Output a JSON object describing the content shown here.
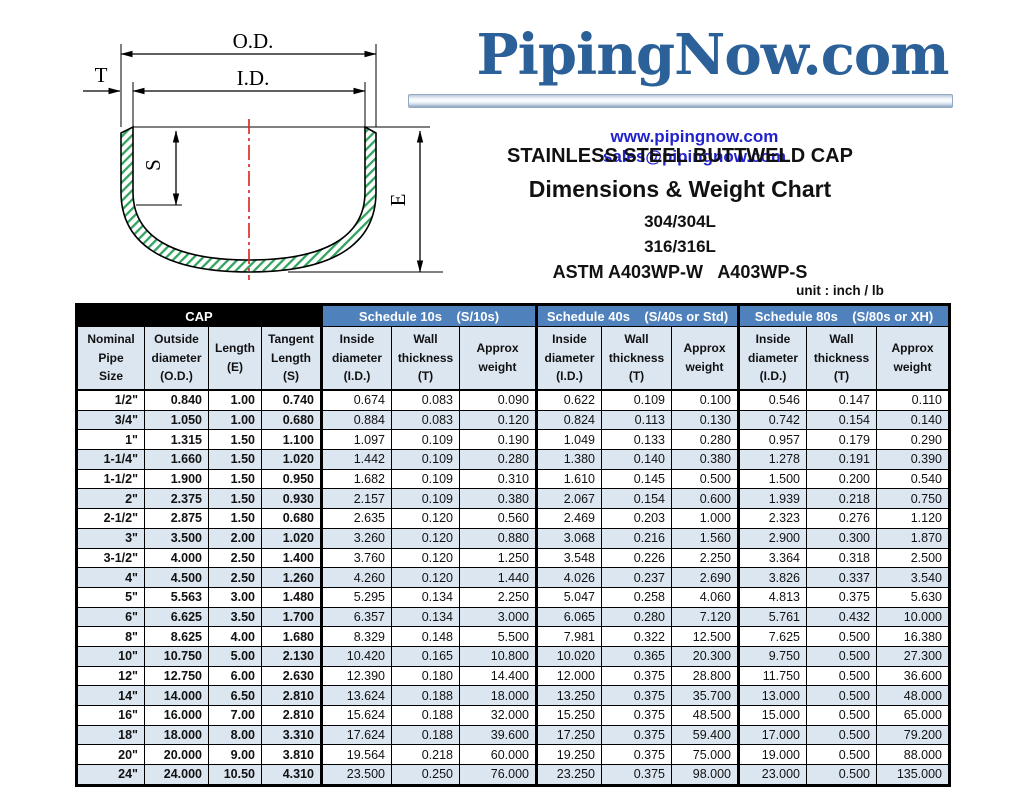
{
  "logo": {
    "text": "PipingNow.com",
    "website": "www.pipingnow.com",
    "email": "sales@pipingnow.com",
    "brand_color": "#2b6198",
    "link_color": "#2323cd"
  },
  "title": {
    "line1": "STAINLESS STEEL BUTTWELD CAP",
    "line2": "Dimensions & Weight Chart",
    "line3": "304/304L",
    "line4": "316/316L",
    "line5": "ASTM A403WP-W   A403WP-S",
    "unit": "unit : inch / lb"
  },
  "diagram": {
    "labels": {
      "od": "O.D.",
      "id": "I.D.",
      "t": "T",
      "s": "S",
      "e": "E"
    },
    "hatch_color": "#33a35f",
    "centerline_color": "#dd1f1f"
  },
  "table": {
    "groups": [
      {
        "label": "CAP",
        "colspan": 4,
        "bg": "#000000"
      },
      {
        "label": "Schedule 10s    (S/10s)",
        "colspan": 3,
        "bg": "#4f81bd"
      },
      {
        "label": "Schedule 40s    (S/40s or Std)",
        "colspan": 3,
        "bg": "#4f81bd"
      },
      {
        "label": "Schedule 80s    (S/80s or XH)",
        "colspan": 3,
        "bg": "#4f81bd"
      }
    ],
    "subheaders": [
      [
        "Nominal",
        "Pipe",
        "Size"
      ],
      [
        "Outside",
        "diameter",
        "(O.D.)"
      ],
      [
        "Length",
        "(E)"
      ],
      [
        "Tangent",
        "Length",
        "(S)"
      ],
      [
        "Inside",
        "diameter",
        "(I.D.)"
      ],
      [
        "Wall",
        "thickness",
        "(T)"
      ],
      [
        "Approx",
        "weight"
      ],
      [
        "Inside",
        "diameter",
        "(I.D.)"
      ],
      [
        "Wall",
        "thickness",
        "(T)"
      ],
      [
        "Approx",
        "weight"
      ],
      [
        "Inside",
        "diameter",
        "(I.D.)"
      ],
      [
        "Wall",
        "thickness",
        "(T)"
      ],
      [
        "Approx",
        "weight"
      ]
    ],
    "rows": [
      [
        "1/2\"",
        "0.840",
        "1.00",
        "0.740",
        "0.674",
        "0.083",
        "0.090",
        "0.622",
        "0.109",
        "0.100",
        "0.546",
        "0.147",
        "0.110"
      ],
      [
        "3/4\"",
        "1.050",
        "1.00",
        "0.680",
        "0.884",
        "0.083",
        "0.120",
        "0.824",
        "0.113",
        "0.130",
        "0.742",
        "0.154",
        "0.140"
      ],
      [
        "1\"",
        "1.315",
        "1.50",
        "1.100",
        "1.097",
        "0.109",
        "0.190",
        "1.049",
        "0.133",
        "0.280",
        "0.957",
        "0.179",
        "0.290"
      ],
      [
        "1-1/4\"",
        "1.660",
        "1.50",
        "1.020",
        "1.442",
        "0.109",
        "0.280",
        "1.380",
        "0.140",
        "0.380",
        "1.278",
        "0.191",
        "0.390"
      ],
      [
        "1-1/2\"",
        "1.900",
        "1.50",
        "0.950",
        "1.682",
        "0.109",
        "0.310",
        "1.610",
        "0.145",
        "0.500",
        "1.500",
        "0.200",
        "0.540"
      ],
      [
        "2\"",
        "2.375",
        "1.50",
        "0.930",
        "2.157",
        "0.109",
        "0.380",
        "2.067",
        "0.154",
        "0.600",
        "1.939",
        "0.218",
        "0.750"
      ],
      [
        "2-1/2\"",
        "2.875",
        "1.50",
        "0.680",
        "2.635",
        "0.120",
        "0.560",
        "2.469",
        "0.203",
        "1.000",
        "2.323",
        "0.276",
        "1.120"
      ],
      [
        "3\"",
        "3.500",
        "2.00",
        "1.020",
        "3.260",
        "0.120",
        "0.880",
        "3.068",
        "0.216",
        "1.560",
        "2.900",
        "0.300",
        "1.870"
      ],
      [
        "3-1/2\"",
        "4.000",
        "2.50",
        "1.400",
        "3.760",
        "0.120",
        "1.250",
        "3.548",
        "0.226",
        "2.250",
        "3.364",
        "0.318",
        "2.500"
      ],
      [
        "4\"",
        "4.500",
        "2.50",
        "1.260",
        "4.260",
        "0.120",
        "1.440",
        "4.026",
        "0.237",
        "2.690",
        "3.826",
        "0.337",
        "3.540"
      ],
      [
        "5\"",
        "5.563",
        "3.00",
        "1.480",
        "5.295",
        "0.134",
        "2.250",
        "5.047",
        "0.258",
        "4.060",
        "4.813",
        "0.375",
        "5.630"
      ],
      [
        "6\"",
        "6.625",
        "3.50",
        "1.700",
        "6.357",
        "0.134",
        "3.000",
        "6.065",
        "0.280",
        "7.120",
        "5.761",
        "0.432",
        "10.000"
      ],
      [
        "8\"",
        "8.625",
        "4.00",
        "1.680",
        "8.329",
        "0.148",
        "5.500",
        "7.981",
        "0.322",
        "12.500",
        "7.625",
        "0.500",
        "16.380"
      ],
      [
        "10\"",
        "10.750",
        "5.00",
        "2.130",
        "10.420",
        "0.165",
        "10.800",
        "10.020",
        "0.365",
        "20.300",
        "9.750",
        "0.500",
        "27.300"
      ],
      [
        "12\"",
        "12.750",
        "6.00",
        "2.630",
        "12.390",
        "0.180",
        "14.400",
        "12.000",
        "0.375",
        "28.800",
        "11.750",
        "0.500",
        "36.600"
      ],
      [
        "14\"",
        "14.000",
        "6.50",
        "2.810",
        "13.624",
        "0.188",
        "18.000",
        "13.250",
        "0.375",
        "35.700",
        "13.000",
        "0.500",
        "48.000"
      ],
      [
        "16\"",
        "16.000",
        "7.00",
        "2.810",
        "15.624",
        "0.188",
        "32.000",
        "15.250",
        "0.375",
        "48.500",
        "15.000",
        "0.500",
        "65.000"
      ],
      [
        "18\"",
        "18.000",
        "8.00",
        "3.310",
        "17.624",
        "0.188",
        "39.600",
        "17.250",
        "0.375",
        "59.400",
        "17.000",
        "0.500",
        "79.200"
      ],
      [
        "20\"",
        "20.000",
        "9.00",
        "3.810",
        "19.564",
        "0.218",
        "60.000",
        "19.250",
        "0.375",
        "75.000",
        "19.000",
        "0.500",
        "88.000"
      ],
      [
        "24\"",
        "24.000",
        "10.50",
        "4.310",
        "23.500",
        "0.250",
        "76.000",
        "23.250",
        "0.375",
        "98.000",
        "23.000",
        "0.500",
        "135.000"
      ]
    ]
  }
}
